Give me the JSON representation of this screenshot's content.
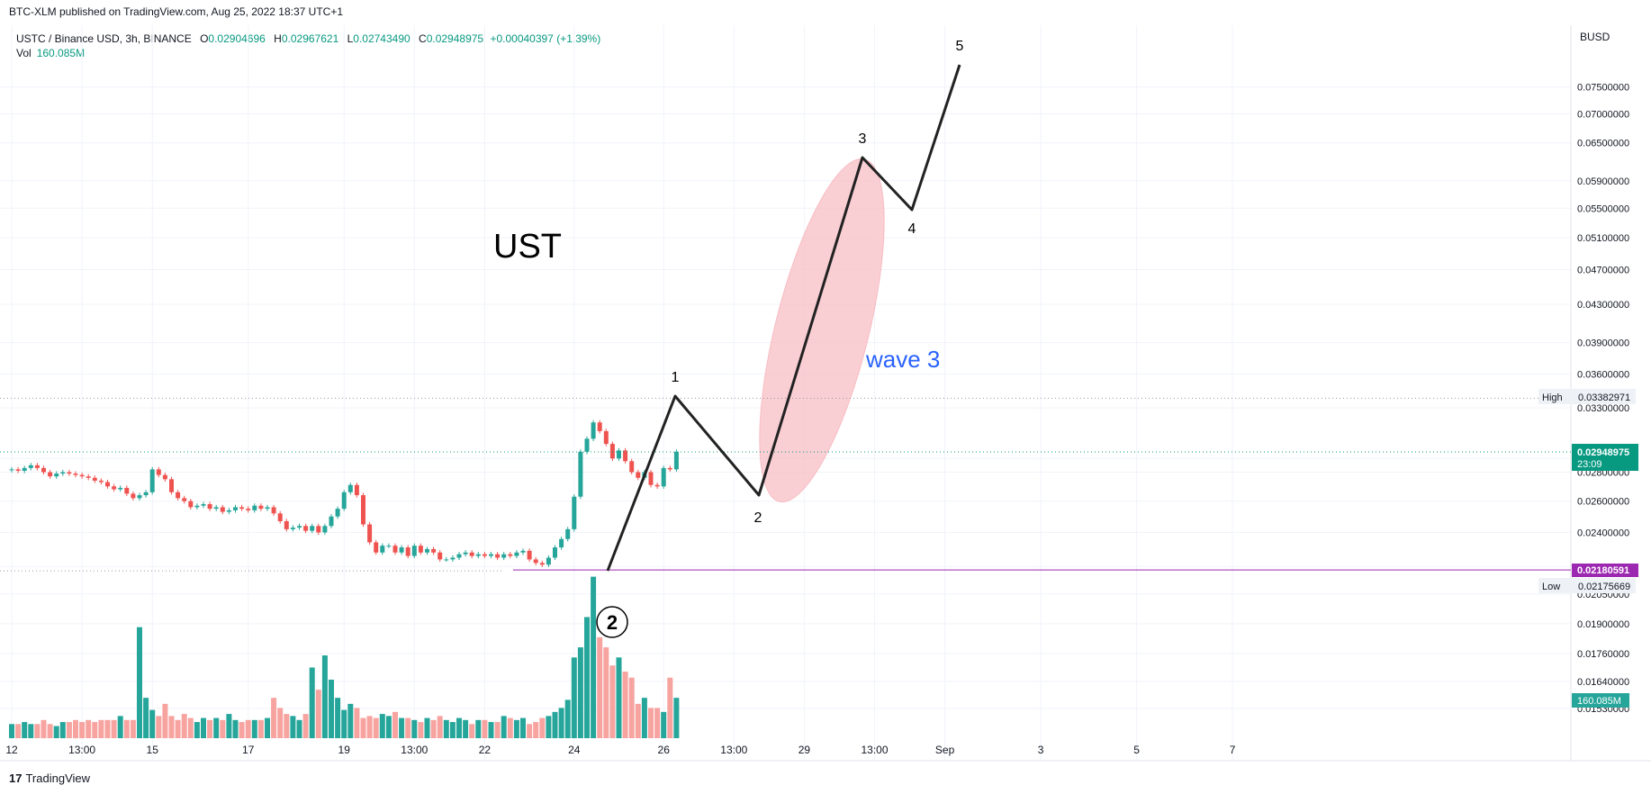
{
  "publish_line": "BTC-XLM published on TradingView.com, Aug 25, 2022 18:37 UTC+1",
  "symbol": "USTC / Binance USD, 3h, BINANCE",
  "ohlc": {
    "open_label": "O",
    "open": "0.02904696",
    "high_label": "H",
    "high": "0.02967621",
    "low_label": "L",
    "low": "0.02743490",
    "close_label": "C",
    "close": "0.02948975",
    "change": "+0.00040397 (+1.39%)"
  },
  "volume": {
    "label": "Vol",
    "value": "160.085M"
  },
  "currency": "BUSD",
  "footer": {
    "logo": "17",
    "brand": "TradingView"
  },
  "colors": {
    "up": "#26a69a",
    "down": "#ef5350",
    "volume_up": "#26a69a",
    "volume_down": "#f7a3a0",
    "wave_line": "#222222",
    "wave_text": "#2962ff",
    "ellipse": "#f8bfc4",
    "purple": "#9c27b0",
    "last_price_bg": "#089981"
  },
  "chart_data": {
    "type": "candlestick",
    "instrument": "USTC / Binance USD",
    "interval": "3h",
    "exchange": "BINANCE",
    "y_scale": "log",
    "ylim": [
      0.0153,
      0.079
    ],
    "y_ticks": [
      "0.07500000",
      "0.07000000",
      "0.06500000",
      "0.05900000",
      "0.05500000",
      "0.05100000",
      "0.04700000",
      "0.04300000",
      "0.03900000",
      "0.03600000",
      "0.03300000",
      "0.02900000",
      "0.02800000",
      "0.02600000",
      "0.02400000",
      "0.02200000",
      "0.02050000",
      "0.01900000",
      "0.01760000",
      "0.01640000",
      "0.01530000"
    ],
    "y_tick_values": [
      0.075,
      0.07,
      0.065,
      0.059,
      0.055,
      0.051,
      0.047,
      0.043,
      0.039,
      0.036,
      0.033,
      0.029,
      0.028,
      0.026,
      0.024,
      0.022,
      0.0205,
      0.019,
      0.0176,
      0.0164,
      0.0153
    ],
    "x_ticks": [
      "12",
      "13:00",
      "15",
      "17",
      "19",
      "13:00",
      "22",
      "24",
      "26",
      "13:00",
      "29",
      "13:00",
      "Sep",
      "3",
      "5",
      "7"
    ],
    "x_tick_bars": [
      0,
      11,
      22,
      37,
      52,
      63,
      74,
      88,
      102,
      113,
      124,
      135,
      146,
      161,
      176,
      191
    ],
    "close": [
      0.0282,
      0.0281,
      0.0283,
      0.0285,
      0.0283,
      0.028,
      0.0277,
      0.0279,
      0.028,
      0.0279,
      0.0278,
      0.0277,
      0.0276,
      0.0274,
      0.0273,
      0.027,
      0.0268,
      0.0269,
      0.0265,
      0.0262,
      0.0264,
      0.0266,
      0.0282,
      0.0278,
      0.0275,
      0.0266,
      0.0262,
      0.026,
      0.0256,
      0.0257,
      0.0258,
      0.0255,
      0.0256,
      0.0253,
      0.0254,
      0.0256,
      0.0255,
      0.0254,
      0.0257,
      0.0255,
      0.0256,
      0.0252,
      0.0247,
      0.0242,
      0.0243,
      0.0244,
      0.0241,
      0.0244,
      0.024,
      0.0244,
      0.025,
      0.0255,
      0.0266,
      0.0271,
      0.0264,
      0.0245,
      0.0234,
      0.0228,
      0.0232,
      0.0232,
      0.0228,
      0.0231,
      0.0226,
      0.0232,
      0.0228,
      0.023,
      0.0228,
      0.0224,
      0.0224,
      0.0225,
      0.0227,
      0.0228,
      0.0226,
      0.0227,
      0.0226,
      0.0227,
      0.0225,
      0.0227,
      0.0226,
      0.0228,
      0.0229,
      0.0224,
      0.0222,
      0.0221,
      0.0225,
      0.0231,
      0.0236,
      0.0242,
      0.0263,
      0.0295,
      0.0305,
      0.0318,
      0.0311,
      0.0301,
      0.029,
      0.0296,
      0.0288,
      0.028,
      0.0276,
      0.028,
      0.0271,
      0.027,
      0.0283,
      0.0282,
      0.0295
    ],
    "volume_M": [
      14,
      14,
      16,
      14,
      14,
      18,
      14,
      12,
      16,
      16,
      18,
      16,
      18,
      16,
      18,
      18,
      18,
      22,
      18,
      18,
      110,
      40,
      28,
      22,
      34,
      22,
      18,
      24,
      20,
      16,
      20,
      18,
      20,
      18,
      24,
      18,
      16,
      18,
      18,
      18,
      20,
      40,
      30,
      24,
      22,
      18,
      24,
      70,
      48,
      82,
      58,
      40,
      28,
      34,
      30,
      20,
      22,
      20,
      24,
      22,
      26,
      20,
      20,
      18,
      16,
      20,
      18,
      22,
      18,
      16,
      20,
      18,
      14,
      18,
      18,
      16,
      16,
      22,
      20,
      18,
      20,
      14,
      16,
      20,
      22,
      26,
      30,
      38,
      80,
      90,
      120,
      160,
      100,
      90,
      72,
      80,
      66,
      60,
      34,
      40,
      30,
      30,
      26,
      60,
      40
    ]
  },
  "annotations": {
    "big_label": "UST",
    "wave_label": "wave 3",
    "circled": "2",
    "points": [
      "1",
      "2",
      "3",
      "4",
      "5"
    ]
  },
  "axis_tags": {
    "high_label": "High",
    "high_value": "0.03382971",
    "last_price": "0.02948975",
    "countdown": "23:09",
    "purple_price": "0.02180591",
    "low_label": "Low",
    "low_value": "0.02175669",
    "volume_tag": "160.085M"
  }
}
